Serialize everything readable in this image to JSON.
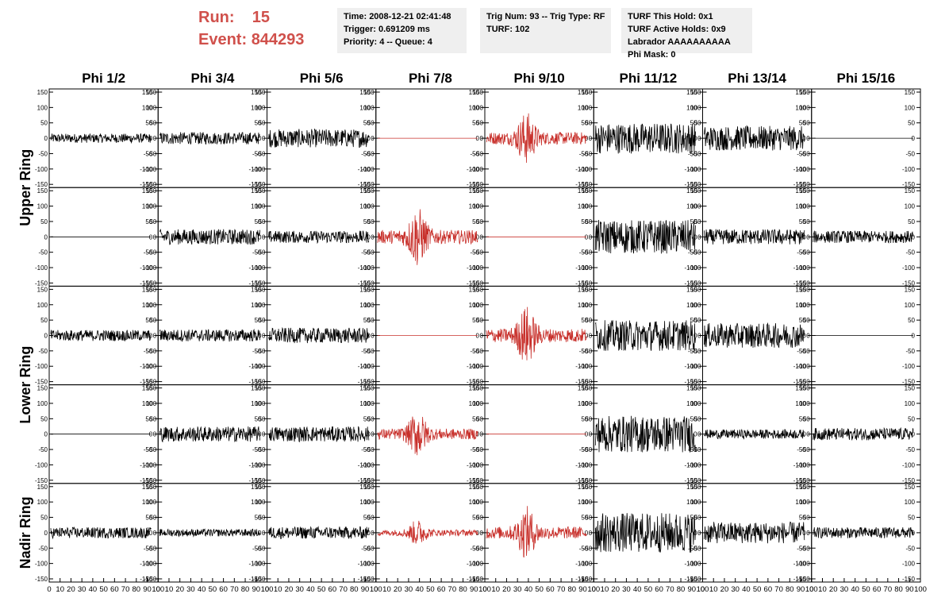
{
  "header": {
    "run_label": "Run:",
    "run_value": "15",
    "event_label": "Event:",
    "event_value": "844293"
  },
  "info_boxes": [
    {
      "lines": [
        "Time: 2008-12-21 02:41:48",
        "Trigger: 0.691209 ms",
        "Priority: 4 -- Queue: 4"
      ]
    },
    {
      "lines": [
        "Trig Num: 93 -- Trig Type: RF",
        "",
        "TURF: 102"
      ]
    },
    {
      "lines": [
        "TURF This Hold: 0x1",
        "TURF Active Holds: 0x9",
        "Labrador AAAAAAAAAA",
        "Phi Mask: 0"
      ]
    }
  ],
  "colors": {
    "triggered": "#c8302b",
    "normal": "#000000",
    "header_accent": "#d0504b",
    "info_bg": "#efefef"
  },
  "chart_data": {
    "type": "line",
    "columns": [
      "Phi 1/2",
      "Phi 3/4",
      "Phi 5/6",
      "Phi 7/8",
      "Phi 9/10",
      "Phi 11/12",
      "Phi 13/14",
      "Phi 15/16"
    ],
    "ring_labels": [
      "Upper Ring",
      "Lower Ring",
      "Nadir Ring"
    ],
    "ylim": [
      -150,
      150
    ],
    "yticks": [
      -150,
      -100,
      -50,
      0,
      50,
      100,
      150
    ],
    "xlim": [
      0,
      100
    ],
    "xticks": [
      0,
      10,
      20,
      30,
      40,
      50,
      60,
      70,
      80,
      90,
      100
    ],
    "n_rows": 5,
    "amplitude_grid": [
      [
        15,
        20,
        30,
        0,
        80,
        50,
        40,
        0
      ],
      [
        0,
        25,
        20,
        90,
        0,
        55,
        25,
        20
      ],
      [
        18,
        20,
        25,
        0,
        90,
        50,
        40,
        0
      ],
      [
        0,
        25,
        25,
        70,
        0,
        60,
        15,
        20
      ],
      [
        18,
        12,
        20,
        40,
        80,
        65,
        35,
        18
      ]
    ],
    "pulse_grid": [
      [
        false,
        false,
        false,
        false,
        true,
        false,
        false,
        false
      ],
      [
        false,
        false,
        false,
        true,
        false,
        false,
        false,
        false
      ],
      [
        false,
        false,
        false,
        false,
        true,
        false,
        false,
        false
      ],
      [
        false,
        false,
        false,
        true,
        false,
        false,
        false,
        false
      ],
      [
        false,
        false,
        false,
        true,
        true,
        false,
        false,
        false
      ]
    ],
    "triggered_grid": [
      [
        false,
        false,
        false,
        true,
        true,
        false,
        false,
        false
      ],
      [
        false,
        false,
        false,
        true,
        true,
        false,
        false,
        false
      ],
      [
        false,
        false,
        false,
        true,
        true,
        false,
        false,
        false
      ],
      [
        false,
        false,
        false,
        true,
        true,
        false,
        false,
        false
      ],
      [
        false,
        false,
        false,
        true,
        true,
        false,
        false,
        false
      ]
    ]
  }
}
